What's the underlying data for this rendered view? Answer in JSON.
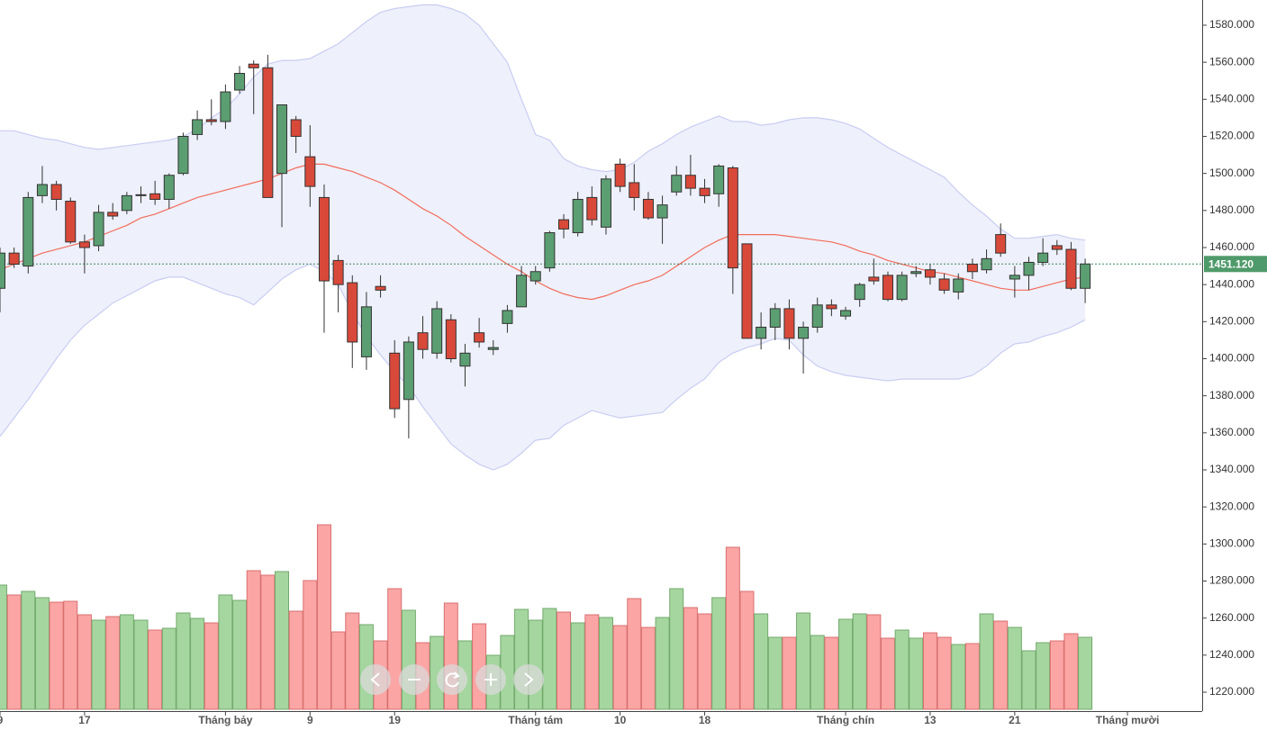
{
  "chart_data": {
    "type": "candlestick",
    "xlim": [
      0,
      85.3
    ],
    "xticks": [
      {
        "value": 0,
        "label": "9"
      },
      {
        "value": 6,
        "label": "17"
      },
      {
        "value": 16,
        "label": "Tháng bảy"
      },
      {
        "value": 22,
        "label": "9"
      },
      {
        "value": 28,
        "label": "19"
      },
      {
        "value": 38,
        "label": "Tháng tám"
      },
      {
        "value": 44,
        "label": "10"
      },
      {
        "value": 50,
        "label": "18"
      },
      {
        "value": 60,
        "label": "Tháng chín"
      },
      {
        "value": 66,
        "label": "13"
      },
      {
        "value": 72,
        "label": "21"
      },
      {
        "value": 80,
        "label": "Tháng mười"
      }
    ],
    "ylim": [
      1209.8,
      1593.6
    ],
    "yticks": [
      {
        "value": 1220,
        "label": "1220.000"
      },
      {
        "value": 1240,
        "label": "1240.000"
      },
      {
        "value": 1260,
        "label": "1260.000"
      },
      {
        "value": 1280,
        "label": "1280.000"
      },
      {
        "value": 1300,
        "label": "1300.000"
      },
      {
        "value": 1320,
        "label": "1320.000"
      },
      {
        "value": 1340,
        "label": "1340.000"
      },
      {
        "value": 1360,
        "label": "1360.000"
      },
      {
        "value": 1380,
        "label": "1380.000"
      },
      {
        "value": 1400,
        "label": "1400.000"
      },
      {
        "value": 1420,
        "label": "1420.000"
      },
      {
        "value": 1440,
        "label": "1440.000"
      },
      {
        "value": 1460,
        "label": "1460.000"
      },
      {
        "value": 1480,
        "label": "1480.000"
      },
      {
        "value": 1500,
        "label": "1500.000"
      },
      {
        "value": 1520,
        "label": "1520.000"
      },
      {
        "value": 1540,
        "label": "1540.000"
      },
      {
        "value": 1560,
        "label": "1560.000"
      },
      {
        "value": 1580,
        "label": "1580.000"
      }
    ],
    "last_price": {
      "value": 1451.12,
      "label": "1451.120"
    },
    "up_color": "#5b9e72",
    "down_color": "#d9493a",
    "volume_up_color": "#a6d6a0",
    "volume_down_color": "#fba5a5",
    "volume_lim": [
      0,
      220
    ],
    "open": [
      1438,
      1457,
      1450,
      1488,
      1494,
      1485,
      1463,
      1461,
      1479,
      1480,
      1488,
      1489,
      1486,
      1500,
      1521,
      1529,
      1528,
      1545,
      1559,
      1557,
      1500,
      1529,
      1509,
      1487,
      1453,
      1441,
      1401,
      1439,
      1403,
      1378,
      1414,
      1403,
      1421,
      1396,
      1414,
      1405,
      1419,
      1428,
      1442,
      1449,
      1475,
      1468,
      1487,
      1471,
      1505,
      1495,
      1486,
      1476,
      1490,
      1499,
      1492,
      1489,
      1503,
      1462,
      1411,
      1417,
      1427,
      1411,
      1417,
      1429,
      1423,
      1432,
      1444,
      1445,
      1432,
      1446,
      1448,
      1443,
      1436,
      1451,
      1448,
      1467,
      1443,
      1445,
      1452,
      1461,
      1459,
      1438
    ],
    "high": [
      1460,
      1460,
      1490,
      1504,
      1496,
      1487,
      1467,
      1483,
      1484,
      1490,
      1493,
      1496,
      1500,
      1522,
      1534,
      1540,
      1548,
      1558,
      1561,
      1564,
      1537,
      1531,
      1526,
      1494,
      1456,
      1445,
      1436,
      1445,
      1410,
      1412,
      1423,
      1431,
      1424,
      1408,
      1422,
      1410,
      1429,
      1450,
      1450,
      1469,
      1478,
      1490,
      1493,
      1499,
      1508,
      1505,
      1490,
      1488,
      1504,
      1510,
      1497,
      1505,
      1504,
      1462,
      1425,
      1430,
      1432,
      1420,
      1433,
      1432,
      1428,
      1441,
      1454,
      1447,
      1447,
      1450,
      1451,
      1446,
      1446,
      1454,
      1459,
      1473,
      1450,
      1455,
      1465,
      1464,
      1463,
      1454
    ],
    "low": [
      1425,
      1449,
      1446,
      1484,
      1480,
      1462,
      1446,
      1458,
      1475,
      1478,
      1484,
      1483,
      1481,
      1499,
      1518,
      1526,
      1524,
      1543,
      1532,
      1487,
      1471,
      1511,
      1482,
      1414,
      1425,
      1395,
      1394,
      1433,
      1368,
      1357,
      1400,
      1400,
      1398,
      1385,
      1406,
      1402,
      1414,
      1428,
      1440,
      1447,
      1465,
      1466,
      1472,
      1467,
      1490,
      1480,
      1475,
      1462,
      1488,
      1488,
      1484,
      1482,
      1435,
      1411,
      1405,
      1410,
      1405,
      1392,
      1414,
      1423,
      1421,
      1428,
      1440,
      1431,
      1431,
      1444,
      1440,
      1435,
      1432,
      1443,
      1446,
      1455,
      1433,
      1437,
      1450,
      1456,
      1437,
      1430
    ],
    "close": [
      1457,
      1451,
      1487,
      1494,
      1486,
      1463,
      1460,
      1479,
      1477,
      1488,
      1488.5,
      1486,
      1499,
      1520,
      1529,
      1528,
      1544,
      1554,
      1557,
      1487,
      1537,
      1520,
      1493,
      1442,
      1440,
      1409,
      1428,
      1437,
      1373,
      1409,
      1405,
      1427,
      1400,
      1403,
      1409,
      1406,
      1426,
      1445,
      1447,
      1468,
      1470,
      1486,
      1475,
      1497,
      1493,
      1487,
      1476,
      1483,
      1499,
      1492,
      1488,
      1504,
      1449,
      1411,
      1417,
      1427,
      1411,
      1417,
      1429,
      1427,
      1426,
      1440,
      1442,
      1432,
      1445,
      1447,
      1444,
      1437,
      1443,
      1447,
      1454,
      1457,
      1445,
      1452,
      1457,
      1459,
      1438,
      1451.12
    ],
    "volume": [
      138,
      127,
      131,
      124,
      119,
      120,
      105,
      99,
      103,
      105,
      99,
      88,
      90,
      107,
      101,
      96,
      127,
      121,
      154,
      149,
      153,
      109,
      143,
      205,
      86,
      107,
      94,
      76,
      134,
      110,
      74,
      81,
      118,
      76,
      95,
      60,
      82,
      111,
      99,
      112,
      108,
      96,
      105,
      102,
      93,
      123,
      91,
      102,
      134,
      113,
      106,
      124,
      180,
      131,
      106,
      80,
      80,
      107,
      82,
      80,
      100,
      106,
      105,
      79,
      88,
      79,
      85,
      80,
      72,
      73,
      106,
      98,
      91,
      65,
      74,
      76,
      84,
      80
    ],
    "bands": {
      "name": "Bollinger",
      "line_color": "#f26d5b",
      "band_color": "#c9cdf2",
      "middle": [
        1448,
        1451,
        1454,
        1457,
        1459,
        1461,
        1463,
        1466,
        1469,
        1472,
        1476,
        1478,
        1481,
        1484,
        1487,
        1489,
        1491,
        1493,
        1495,
        1497,
        1500,
        1503,
        1505,
        1505,
        1503,
        1501,
        1498,
        1495,
        1491,
        1486,
        1481,
        1477,
        1472,
        1466,
        1461,
        1456,
        1451,
        1447,
        1442,
        1438,
        1435,
        1433,
        1432,
        1434,
        1437,
        1440,
        1442,
        1445,
        1450,
        1455,
        1460,
        1464,
        1467,
        1467,
        1467,
        1467,
        1466,
        1465,
        1464,
        1463,
        1461,
        1458,
        1456,
        1453,
        1451,
        1449,
        1447,
        1446,
        1444,
        1442,
        1440,
        1438,
        1437,
        1437,
        1439,
        1441,
        1443,
        1444
      ],
      "upper": [
        1523,
        1523,
        1521,
        1519,
        1518,
        1516,
        1514,
        1513,
        1514,
        1515,
        1516,
        1517,
        1518,
        1520,
        1524,
        1530,
        1535,
        1543,
        1552,
        1559,
        1561,
        1561,
        1562,
        1566,
        1570,
        1576,
        1582,
        1587,
        1589,
        1590,
        1591,
        1591,
        1589,
        1586,
        1580,
        1570,
        1560,
        1540,
        1521,
        1518,
        1508,
        1504,
        1502,
        1501,
        1502,
        1506,
        1512,
        1516,
        1521,
        1525,
        1528,
        1531,
        1528,
        1528,
        1526,
        1527,
        1529,
        1530,
        1530,
        1529,
        1527,
        1524,
        1519,
        1514,
        1510,
        1506,
        1502,
        1498,
        1490,
        1483,
        1477,
        1470,
        1465,
        1465,
        1466,
        1467,
        1465,
        1464
      ],
      "lower": [
        1358,
        1368,
        1378,
        1389,
        1400,
        1410,
        1418,
        1424,
        1430,
        1434,
        1438,
        1442,
        1444,
        1444,
        1441,
        1438,
        1435,
        1433,
        1429,
        1436,
        1443,
        1448,
        1451,
        1447,
        1440,
        1425,
        1412,
        1402,
        1393,
        1385,
        1374,
        1364,
        1354,
        1348,
        1343,
        1340,
        1343,
        1349,
        1356,
        1357,
        1364,
        1368,
        1372,
        1370,
        1368,
        1369,
        1370,
        1371,
        1378,
        1384,
        1389,
        1398,
        1403,
        1406,
        1408,
        1411,
        1410,
        1402,
        1396,
        1393,
        1391,
        1390,
        1389,
        1388,
        1389,
        1389,
        1389,
        1389,
        1389,
        1391,
        1396,
        1403,
        1408,
        1409,
        1412,
        1414,
        1417,
        1421
      ]
    }
  }
}
